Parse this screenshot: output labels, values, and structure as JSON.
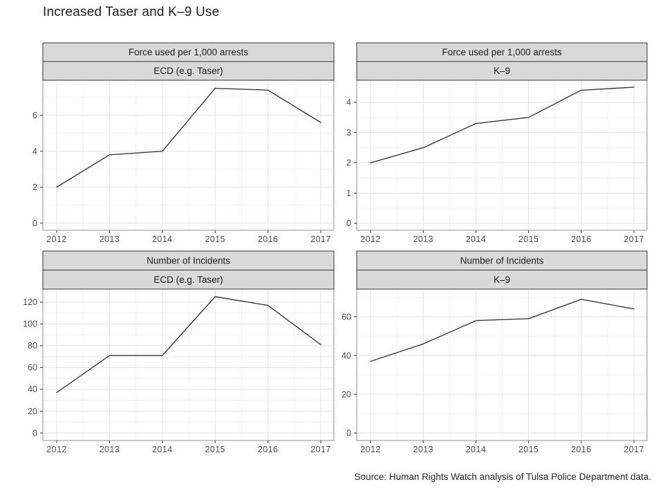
{
  "title": "Increased Taser and K–9 Use",
  "source": "Source: Human Rights Watch analysis of Tulsa Police Department data.",
  "colors": {
    "line": "#3a3a3a",
    "strip_bg": "#d9d9d9",
    "strip_border": "#333333",
    "panel_border": "#8c8c8c",
    "grid_major": "#e2e2e2",
    "grid_minor": "#f2f2f2",
    "tick_mark": "#333333",
    "tick_text": "#4d4d4d",
    "strip_text": "#1f1f1f"
  },
  "chart_data": [
    {
      "type": "line",
      "panel_id": "panel-force-ecd",
      "strip_title": "Force used per 1,000 arrests",
      "strip_subtitle": "ECD (e.g. Taser)",
      "x": [
        2012,
        2013,
        2014,
        2015,
        2016,
        2017
      ],
      "values": [
        2.0,
        3.8,
        4.0,
        7.5,
        7.4,
        5.6
      ],
      "yticks": [
        0,
        2,
        4,
        6
      ],
      "y_minor": [
        1,
        3,
        5,
        7
      ],
      "ylim": [
        -0.4,
        7.95
      ],
      "xlabel": "",
      "ylabel": "",
      "grid": true,
      "legend": "none"
    },
    {
      "type": "line",
      "panel_id": "panel-force-k9",
      "strip_title": "Force used per 1,000 arrests",
      "strip_subtitle": "K–9",
      "x": [
        2012,
        2013,
        2014,
        2015,
        2016,
        2017
      ],
      "values": [
        2.0,
        2.5,
        3.3,
        3.5,
        4.4,
        4.5
      ],
      "yticks": [
        0,
        1,
        2,
        3,
        4
      ],
      "y_minor": [
        0.5,
        1.5,
        2.5,
        3.5,
        4.5
      ],
      "ylim": [
        -0.23,
        4.73
      ],
      "xlabel": "",
      "ylabel": "",
      "grid": true,
      "legend": "none"
    },
    {
      "type": "line",
      "panel_id": "panel-incidents-ecd",
      "strip_title": "Number of Incidents",
      "strip_subtitle": "ECD (e.g. Taser)",
      "x": [
        2012,
        2013,
        2014,
        2015,
        2016,
        2017
      ],
      "values": [
        37,
        71,
        71,
        125,
        117,
        81
      ],
      "yticks": [
        0,
        20,
        40,
        60,
        80,
        100,
        120
      ],
      "y_minor": [
        10,
        30,
        50,
        70,
        90,
        110,
        130
      ],
      "ylim": [
        -7,
        132
      ],
      "xlabel": "",
      "ylabel": "",
      "grid": true,
      "legend": "none"
    },
    {
      "type": "line",
      "panel_id": "panel-incidents-k9",
      "strip_title": "Number of Incidents",
      "strip_subtitle": "K–9",
      "x": [
        2012,
        2013,
        2014,
        2015,
        2016,
        2017
      ],
      "values": [
        37,
        46,
        58,
        59,
        69,
        64
      ],
      "yticks": [
        0,
        20,
        40,
        60
      ],
      "y_minor": [
        10,
        30,
        50,
        70
      ],
      "ylim": [
        -3.9,
        74.3
      ],
      "xlabel": "",
      "ylabel": "",
      "grid": true,
      "legend": "none"
    }
  ]
}
